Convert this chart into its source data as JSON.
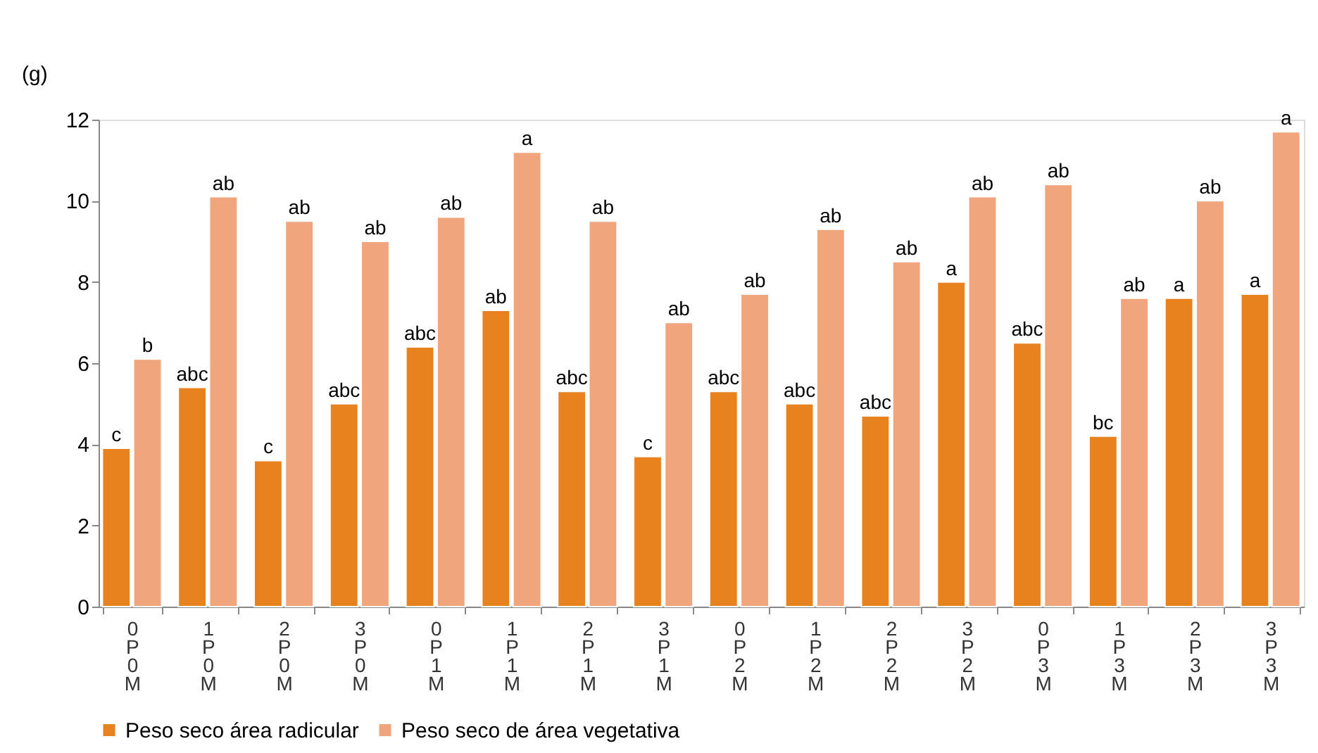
{
  "chart_data": {
    "type": "bar",
    "ylabel": "(g)",
    "categories": [
      "0P0M",
      "1P0M",
      "2P0M",
      "3P0M",
      "0P1M",
      "1P1M",
      "2P1M",
      "3P1M",
      "0P2M",
      "1P2M",
      "2P2M",
      "3P2M",
      "0P3M",
      "1P3M",
      "2P3M",
      "3P3M"
    ],
    "series": [
      {
        "name": "Peso seco área radicular",
        "color": "#e8821e",
        "values": [
          3.9,
          5.4,
          3.6,
          5.0,
          6.4,
          7.3,
          5.3,
          3.7,
          5.3,
          5.0,
          4.7,
          8.0,
          6.5,
          4.2,
          7.6,
          7.7
        ],
        "value_labels": [
          "c",
          "abc",
          "c",
          "abc",
          "abc",
          "ab",
          "abc",
          "c",
          "abc",
          "abc",
          "abc",
          "a",
          "abc",
          "bc",
          "a",
          "a"
        ]
      },
      {
        "name": "Peso seco de área vegetativa",
        "color": "#f0a57c",
        "values": [
          6.1,
          10.1,
          9.5,
          9.0,
          9.6,
          11.2,
          9.5,
          7.0,
          7.7,
          9.3,
          8.5,
          10.1,
          10.4,
          7.6,
          10.0,
          11.7
        ],
        "value_labels": [
          "b",
          "ab",
          "ab",
          "ab",
          "ab",
          "a",
          "ab",
          "ab",
          "ab",
          "ab",
          "ab",
          "ab",
          "ab",
          "ab",
          "ab",
          "a"
        ]
      }
    ],
    "ylim": [
      0,
      12
    ],
    "yticks": [
      0,
      2,
      4,
      6,
      8,
      10,
      12
    ],
    "grid": false,
    "legend": "bottom"
  }
}
